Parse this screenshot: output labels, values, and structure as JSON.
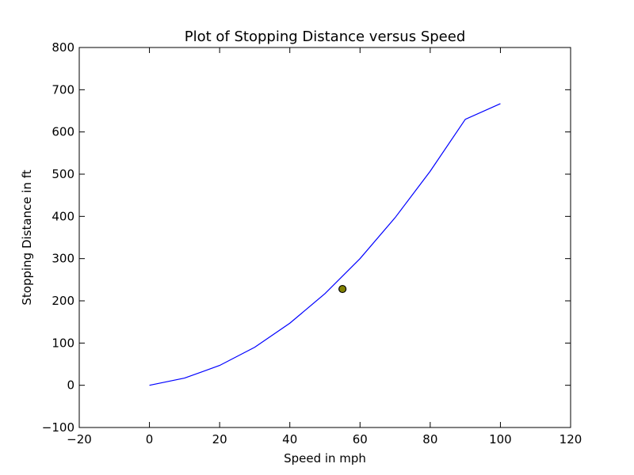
{
  "chart_data": {
    "type": "line",
    "title": "Plot of Stopping Distance versus Speed",
    "xlabel": "Speed in mph",
    "ylabel": "Stopping Distance in ft",
    "xlim": [
      -20,
      120
    ],
    "ylim": [
      -100,
      800
    ],
    "xticks": [
      -20,
      0,
      20,
      40,
      60,
      80,
      100,
      120
    ],
    "yticks": [
      -100,
      0,
      100,
      200,
      300,
      400,
      500,
      600,
      700,
      800
    ],
    "xtick_labels": [
      "−20",
      "0",
      "20",
      "40",
      "60",
      "80",
      "100",
      "120"
    ],
    "ytick_labels": [
      "−100",
      "0",
      "100",
      "200",
      "300",
      "400",
      "500",
      "600",
      "700",
      "800"
    ],
    "grid": false,
    "series": [
      {
        "color": "#0000ff",
        "x": [
          0,
          10,
          20,
          30,
          40,
          50,
          60,
          70,
          80,
          90,
          100
        ],
        "y": [
          0,
          17,
          47,
          90,
          147,
          217,
          300,
          397,
          507,
          630,
          667
        ]
      }
    ],
    "highlight_point": {
      "x": 55,
      "y": 228,
      "fill": "#808000",
      "edge": "#000000"
    }
  }
}
